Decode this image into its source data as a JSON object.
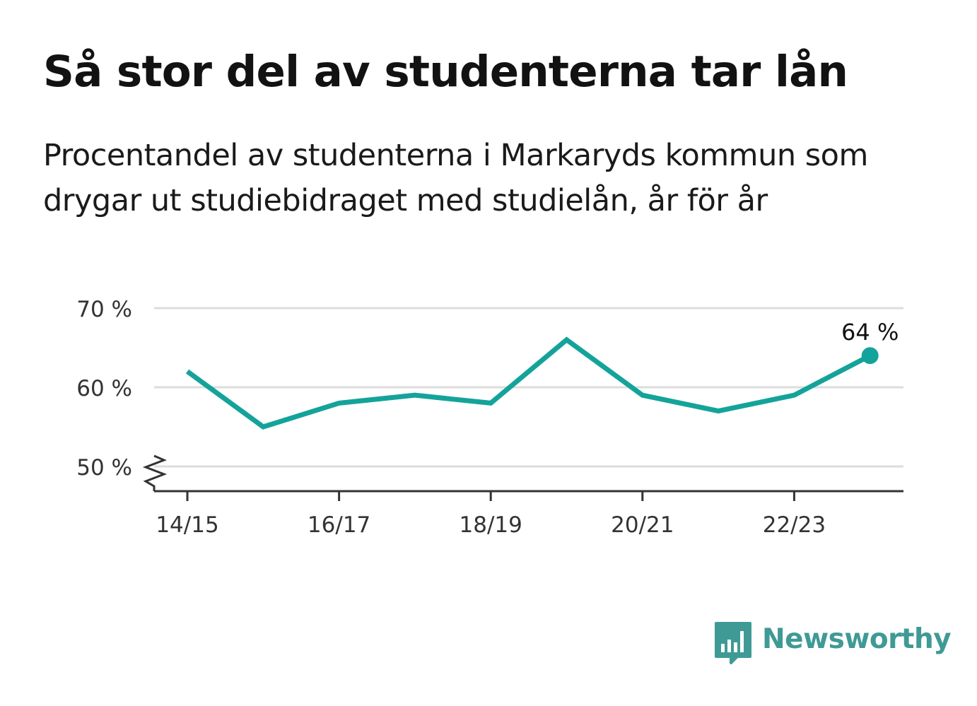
{
  "header": {
    "title": "Så stor del av studenterna tar lån",
    "subtitle": "Procentandel av studenterna i Markaryds kommun som drygar ut studiebidraget med studielån, år för år"
  },
  "chart_data": {
    "type": "line",
    "x": [
      "14/15",
      "15/16",
      "16/17",
      "17/18",
      "18/19",
      "19/20",
      "20/21",
      "21/22",
      "22/23",
      "23/24"
    ],
    "values": [
      62,
      55,
      58,
      59,
      58,
      66,
      59,
      57,
      59,
      64
    ],
    "x_tick_labels": [
      "14/15",
      "16/17",
      "18/19",
      "20/21",
      "22/23"
    ],
    "y_ticks": [
      {
        "value": 50,
        "label": "50 %"
      },
      {
        "value": 60,
        "label": "60 %"
      },
      {
        "value": 70,
        "label": "70 %"
      }
    ],
    "ylim": [
      50,
      70
    ],
    "y_axis_broken": true,
    "grid": true,
    "end_label": "64 %",
    "line_color": "#14a39a",
    "grid_color": "#dddddd",
    "axis_color": "#333333"
  },
  "brand": {
    "name": "Newsworthy",
    "icon": "newsworthy-logo-icon",
    "color": "#3f9a95"
  }
}
